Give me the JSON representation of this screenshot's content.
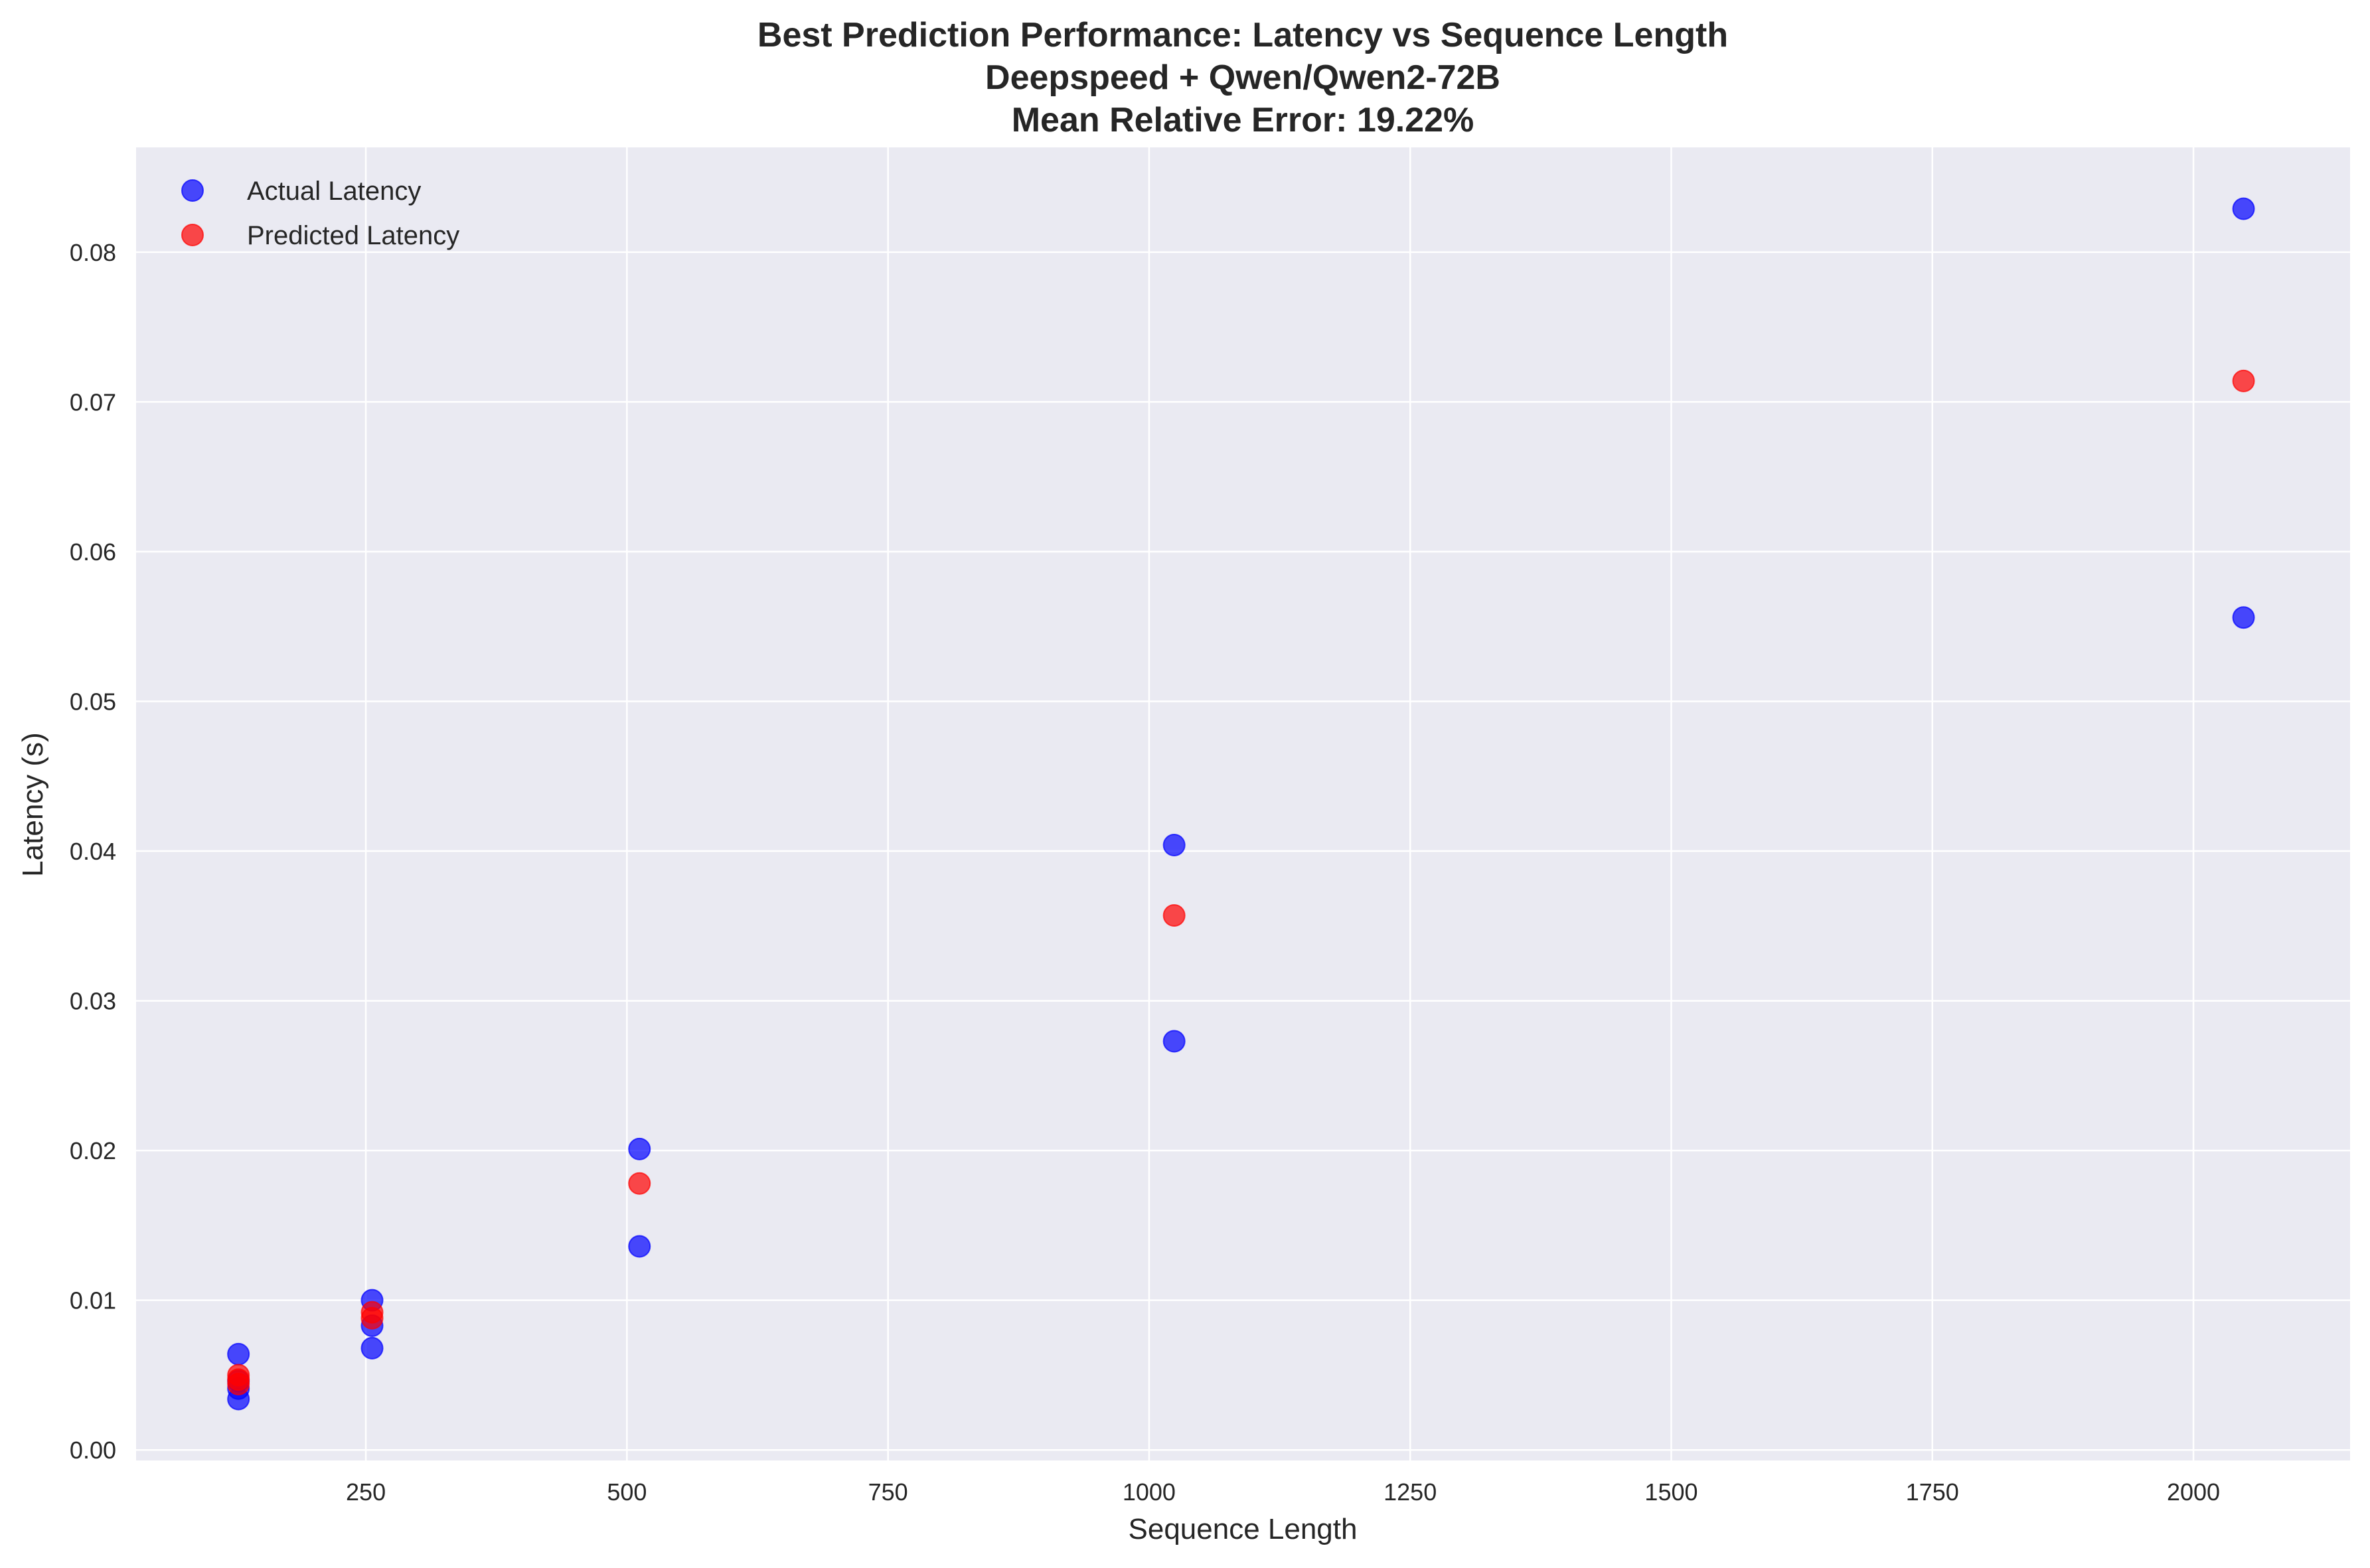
{
  "chart_data": {
    "type": "scatter",
    "title": [
      "Best Prediction Performance: Latency vs Sequence Length",
      "Deepspeed + Qwen/Qwen2-72B",
      "Mean Relative Error: 19.22%"
    ],
    "xlabel": "Sequence Length",
    "ylabel": "Latency (s)",
    "xlim": [
      30,
      2150
    ],
    "ylim": [
      -0.0007,
      0.087
    ],
    "xticks": [
      250,
      500,
      750,
      1000,
      1250,
      1500,
      1750,
      2000
    ],
    "xtick_labels": [
      "250",
      "500",
      "750",
      "1000",
      "1250",
      "1500",
      "1750",
      "2000"
    ],
    "yticks": [
      0.0,
      0.01,
      0.02,
      0.03,
      0.04,
      0.05,
      0.06,
      0.07,
      0.08
    ],
    "ytick_labels": [
      "0.00",
      "0.01",
      "0.02",
      "0.03",
      "0.04",
      "0.05",
      "0.06",
      "0.07",
      "0.08"
    ],
    "grid": true,
    "legend_position": "top-left",
    "background_color": "#eaeaf2",
    "grid_color": "#ffffff",
    "series": [
      {
        "name": "Actual Latency",
        "color": "#0000ff",
        "points": [
          {
            "x": 128,
            "y": 0.0034
          },
          {
            "x": 128,
            "y": 0.0041
          },
          {
            "x": 128,
            "y": 0.0046
          },
          {
            "x": 128,
            "y": 0.0064
          },
          {
            "x": 256,
            "y": 0.0068
          },
          {
            "x": 256,
            "y": 0.0083
          },
          {
            "x": 256,
            "y": 0.01
          },
          {
            "x": 512,
            "y": 0.0136
          },
          {
            "x": 512,
            "y": 0.0201
          },
          {
            "x": 1024,
            "y": 0.0273
          },
          {
            "x": 1024,
            "y": 0.0404
          },
          {
            "x": 2048,
            "y": 0.0556
          },
          {
            "x": 2048,
            "y": 0.0829
          }
        ]
      },
      {
        "name": "Predicted Latency",
        "color": "#ff0000",
        "points": [
          {
            "x": 128,
            "y": 0.0044
          },
          {
            "x": 128,
            "y": 0.0047
          },
          {
            "x": 128,
            "y": 0.005
          },
          {
            "x": 256,
            "y": 0.0088
          },
          {
            "x": 256,
            "y": 0.0092
          },
          {
            "x": 512,
            "y": 0.0178
          },
          {
            "x": 1024,
            "y": 0.0357
          },
          {
            "x": 2048,
            "y": 0.0714
          }
        ]
      }
    ]
  }
}
